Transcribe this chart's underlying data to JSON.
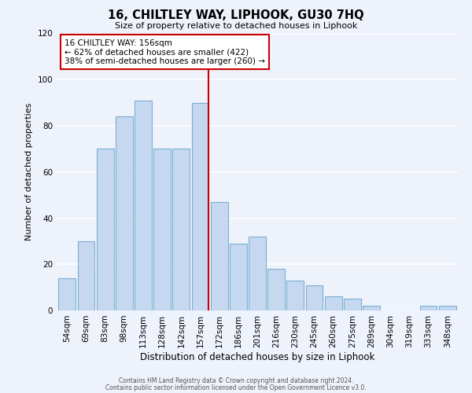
{
  "title": "16, CHILTLEY WAY, LIPHOOK, GU30 7HQ",
  "subtitle": "Size of property relative to detached houses in Liphook",
  "xlabel": "Distribution of detached houses by size in Liphook",
  "ylabel": "Number of detached properties",
  "bar_labels": [
    "54sqm",
    "69sqm",
    "83sqm",
    "98sqm",
    "113sqm",
    "128sqm",
    "142sqm",
    "157sqm",
    "172sqm",
    "186sqm",
    "201sqm",
    "216sqm",
    "230sqm",
    "245sqm",
    "260sqm",
    "275sqm",
    "289sqm",
    "304sqm",
    "319sqm",
    "333sqm",
    "348sqm"
  ],
  "bar_values": [
    14,
    30,
    70,
    84,
    91,
    70,
    70,
    90,
    47,
    29,
    32,
    18,
    13,
    11,
    6,
    5,
    2,
    0,
    0,
    2,
    2
  ],
  "bar_color": "#c5d8f0",
  "bar_edge_color": "#7bafd4",
  "vline_index": 7,
  "vline_color": "#cc0000",
  "ylim": [
    0,
    120
  ],
  "yticks": [
    0,
    20,
    40,
    60,
    80,
    100,
    120
  ],
  "annotation_title": "16 CHILTLEY WAY: 156sqm",
  "annotation_line1": "← 62% of detached houses are smaller (422)",
  "annotation_line2": "38% of semi-detached houses are larger (260) →",
  "annotation_box_color": "#ffffff",
  "annotation_box_edge": "#cc0000",
  "footer_line1": "Contains HM Land Registry data © Crown copyright and database right 2024.",
  "footer_line2": "Contains public sector information licensed under the Open Government Licence v3.0.",
  "background_color": "#eef2fb"
}
